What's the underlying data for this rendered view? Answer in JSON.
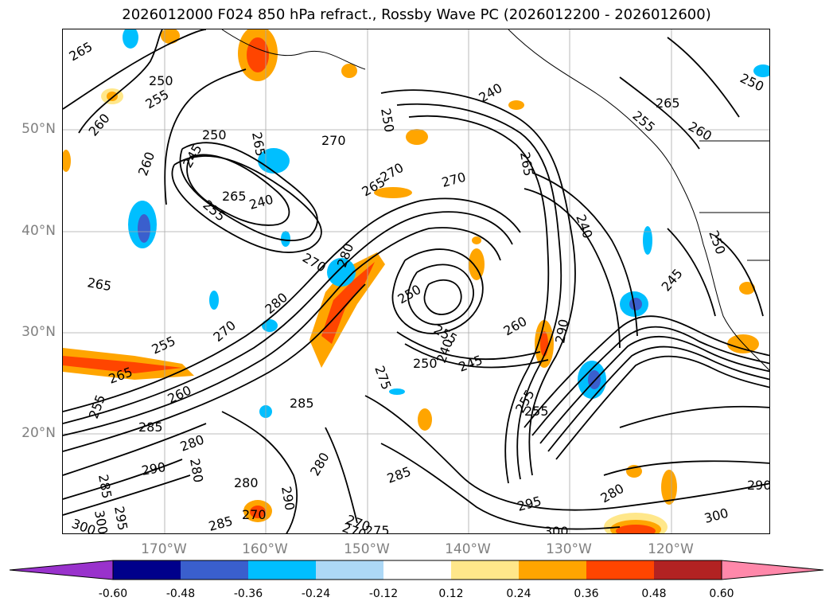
{
  "title": "2026012000 F024 850 hPa refract., Rossby Wave PC (2026012200 - 2026012600)",
  "lat_labels": [
    "50°N",
    "40°N",
    "30°N",
    "20°N"
  ],
  "lon_labels": [
    "170°W",
    "160°W",
    "150°W",
    "140°W",
    "130°W",
    "120°W"
  ],
  "colorbar": {
    "ticks": [
      "-0.60",
      "-0.48",
      "-0.36",
      "-0.24",
      "-0.12",
      "0.12",
      "0.24",
      "0.36",
      "0.48",
      "0.60"
    ],
    "colors": [
      "#9932cc",
      "#00008b",
      "#3a5fcd",
      "#00bfff",
      "#add8f6",
      "#ffffff",
      "#ffe78a",
      "#ffa500",
      "#ff4500",
      "#b22222",
      "#ff88aa"
    ]
  },
  "contour_labels": [
    "265",
    "250",
    "255",
    "260",
    "260",
    "265",
    "250",
    "245",
    "255",
    "240",
    "270",
    "265",
    "270",
    "270",
    "250",
    "240",
    "265",
    "250",
    "265",
    "260",
    "255",
    "240",
    "250",
    "245",
    "265",
    "280",
    "270",
    "250",
    "250",
    "255",
    "240",
    "260",
    "255",
    "245",
    "265",
    "270",
    "280",
    "290",
    "255",
    "265",
    "260",
    "255",
    "285",
    "285",
    "280",
    "280",
    "280",
    "275",
    "270",
    "285",
    "255",
    "290",
    "295",
    "280",
    "290",
    "300",
    "300",
    "280",
    "270",
    "290",
    "285",
    "275",
    "270",
    "300",
    "300",
    "285",
    "295"
  ],
  "legend_colorbar_label": "",
  "map_features": [
    "coastlines",
    "state-borders",
    "gridlines"
  ]
}
